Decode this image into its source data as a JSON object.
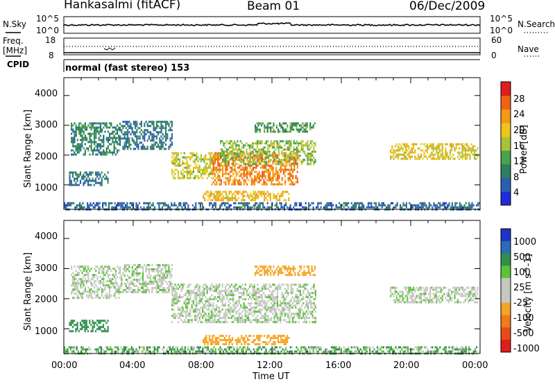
{
  "header": {
    "radar": "Hankasalmi (fitACF)",
    "beam": "Beam 01",
    "date": "06/Dec/2009"
  },
  "top_panels": {
    "nsky_label": "N.Sky",
    "nsky_top": "10^5",
    "nsky_bottom": "10^0",
    "nsearch_label": "N.Search",
    "nsearch_top": "10^5",
    "nsearch_bottom": "10^0",
    "freq_label": "Freq.",
    "freq_unit": "[MHz]",
    "freq_top": "18",
    "freq_bottom": "8",
    "nave_label": "Nave",
    "nave_top": "60",
    "nave_bottom": "0",
    "cpid_label": "CPID",
    "cpid_value": "normal (fast stereo) 153"
  },
  "colors": {
    "power_scale": [
      "#1f2bdc",
      "#2b5fb0",
      "#2f7f5f",
      "#4aa24a",
      "#a8c23a",
      "#f0c41c",
      "#f59a16",
      "#f06318",
      "#e01c1c"
    ],
    "velocity_scale": [
      "#1e33c8",
      "#2d6ab7",
      "#2f8f4f",
      "#5cc23a",
      "#c8c8c2",
      "#c8c8c2",
      "#f5a523",
      "#f07b1a",
      "#e84b17",
      "#e01c1c"
    ]
  },
  "chart_data": [
    {
      "type": "heatmap",
      "panel": "power",
      "xlabel": "Time UT",
      "ylabel": "Slant Range [km]",
      "colorbar_label": "Power [dB]",
      "xlim": [
        "00:00",
        "24:00"
      ],
      "ylim": [
        180,
        4600
      ],
      "x_ticks": [
        "00:00",
        "04:00",
        "08:00",
        "12:00",
        "16:00",
        "20:00",
        "00:00"
      ],
      "y_ticks": [
        "1000",
        "2000",
        "3000",
        "4000"
      ],
      "colorbar_ticks": [
        "4",
        "8",
        "12",
        "16",
        "20",
        "24",
        "28"
      ],
      "colorbar_range": [
        0,
        30
      ],
      "regions": [
        {
          "t0": 0.0,
          "t1": 0.4,
          "r0": 190,
          "r1": 420,
          "level": 4
        },
        {
          "t0": 0.4,
          "t1": 3.2,
          "r0": 2000,
          "r1": 3100,
          "level": 8
        },
        {
          "t0": 0.3,
          "t1": 2.5,
          "r0": 1000,
          "r1": 1450,
          "level": 6
        },
        {
          "t0": 3.2,
          "t1": 6.2,
          "r0": 2200,
          "r1": 3150,
          "level": 6
        },
        {
          "t0": 6.2,
          "t1": 9.0,
          "r0": 1200,
          "r1": 2100,
          "level": 16
        },
        {
          "t0": 8.5,
          "t1": 13.5,
          "r0": 1000,
          "r1": 2100,
          "level": 24
        },
        {
          "t0": 9.0,
          "t1": 14.5,
          "r0": 1700,
          "r1": 2500,
          "level": 14
        },
        {
          "t0": 8.0,
          "t1": 13.0,
          "r0": 500,
          "r1": 800,
          "level": 20
        },
        {
          "t0": 11.0,
          "t1": 14.5,
          "r0": 2800,
          "r1": 3100,
          "level": 10
        },
        {
          "t0": 18.8,
          "t1": 23.9,
          "r0": 1900,
          "r1": 2400,
          "level": 18
        },
        {
          "t0": 0.0,
          "t1": 24.0,
          "r0": 190,
          "r1": 420,
          "level": 5
        }
      ]
    },
    {
      "type": "heatmap",
      "panel": "velocity",
      "xlabel": "Time UT",
      "ylabel": "Slant Range [km]",
      "colorbar_label": "Velocity [m s^-1]",
      "xlim": [
        "00:00",
        "24:00"
      ],
      "ylim": [
        180,
        4600
      ],
      "x_ticks": [
        "00:00",
        "04:00",
        "08:00",
        "12:00",
        "16:00",
        "20:00",
        "00:00"
      ],
      "y_ticks": [
        "1000",
        "2000",
        "3000",
        "4000"
      ],
      "colorbar_ticks": [
        "1000",
        "500",
        "100",
        "25",
        "-25",
        "-100",
        "-500",
        "-1000"
      ],
      "regions": [
        {
          "t0": 0.4,
          "t1": 3.2,
          "r0": 2000,
          "r1": 3100,
          "velocity": 0
        },
        {
          "t0": 3.2,
          "t1": 6.2,
          "r0": 2200,
          "r1": 3150,
          "velocity": 0
        },
        {
          "t0": 6.2,
          "t1": 14.5,
          "r0": 1200,
          "r1": 2500,
          "velocity": 0
        },
        {
          "t0": 0.3,
          "t1": 2.5,
          "r0": 900,
          "r1": 1300,
          "velocity": 150
        },
        {
          "t0": 8.0,
          "t1": 13.0,
          "r0": 500,
          "r1": 800,
          "velocity": -150
        },
        {
          "t0": 11.0,
          "t1": 14.5,
          "r0": 2800,
          "r1": 3100,
          "velocity": -200
        },
        {
          "t0": 18.8,
          "t1": 23.9,
          "r0": 1900,
          "r1": 2400,
          "velocity": 0
        },
        {
          "t0": 0.0,
          "t1": 24.0,
          "r0": 190,
          "r1": 420,
          "velocity": 50
        }
      ]
    }
  ]
}
